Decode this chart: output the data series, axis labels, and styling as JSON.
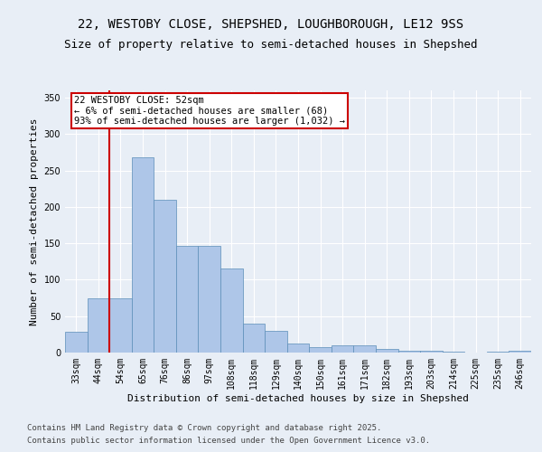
{
  "title_line1": "22, WESTOBY CLOSE, SHEPSHED, LOUGHBOROUGH, LE12 9SS",
  "title_line2": "Size of property relative to semi-detached houses in Shepshed",
  "xlabel": "Distribution of semi-detached houses by size in Shepshed",
  "ylabel": "Number of semi-detached properties",
  "categories": [
    "33sqm",
    "44sqm",
    "54sqm",
    "65sqm",
    "76sqm",
    "86sqm",
    "97sqm",
    "108sqm",
    "118sqm",
    "129sqm",
    "140sqm",
    "150sqm",
    "161sqm",
    "171sqm",
    "182sqm",
    "193sqm",
    "203sqm",
    "214sqm",
    "225sqm",
    "235sqm",
    "246sqm"
  ],
  "values": [
    29,
    75,
    75,
    268,
    210,
    147,
    147,
    115,
    40,
    30,
    12,
    8,
    10,
    10,
    5,
    3,
    2,
    1,
    0,
    1,
    2
  ],
  "bar_color": "#aec6e8",
  "bar_edge_color": "#5b8db8",
  "vline_x": 1.5,
  "vline_color": "#cc0000",
  "annotation_title": "22 WESTOBY CLOSE: 52sqm",
  "annotation_line2": "← 6% of semi-detached houses are smaller (68)",
  "annotation_line3": "93% of semi-detached houses are larger (1,032) →",
  "annotation_box_color": "#cc0000",
  "ylim": [
    0,
    360
  ],
  "yticks": [
    0,
    50,
    100,
    150,
    200,
    250,
    300,
    350
  ],
  "background_color": "#e8eef6",
  "plot_background": "#e8eef6",
  "footer_line1": "Contains HM Land Registry data © Crown copyright and database right 2025.",
  "footer_line2": "Contains public sector information licensed under the Open Government Licence v3.0.",
  "grid_color": "#ffffff",
  "title_fontsize": 10,
  "subtitle_fontsize": 9,
  "axis_label_fontsize": 8,
  "tick_fontsize": 7,
  "annotation_fontsize": 7.5,
  "footer_fontsize": 6.5
}
